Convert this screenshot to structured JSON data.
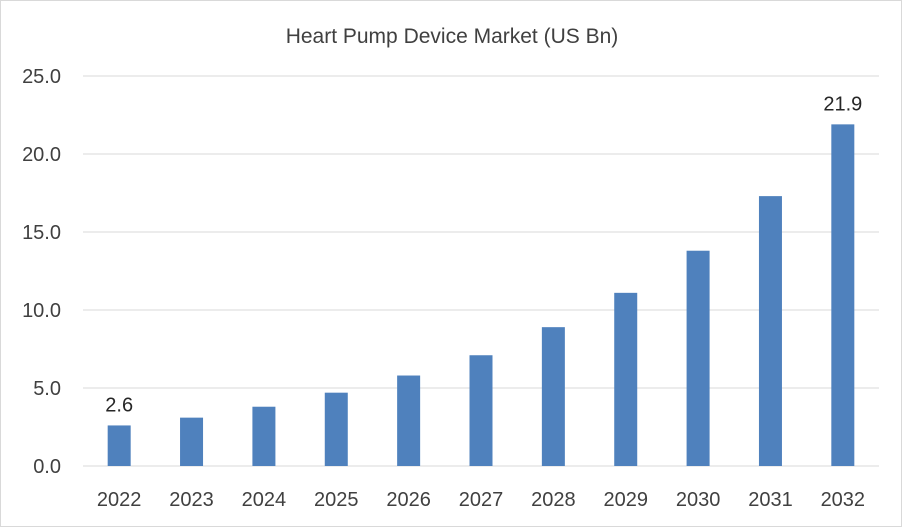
{
  "chart_data": {
    "type": "bar",
    "title": "Heart Pump Device Market (US Bn)",
    "xlabel": "",
    "ylabel": "",
    "categories": [
      "2022",
      "2023",
      "2024",
      "2025",
      "2026",
      "2027",
      "2028",
      "2029",
      "2030",
      "2031",
      "2032"
    ],
    "values": [
      2.6,
      3.1,
      3.8,
      4.7,
      5.8,
      7.1,
      8.9,
      11.1,
      13.8,
      17.3,
      21.9
    ],
    "data_labels": [
      {
        "index": 0,
        "text": "2.6"
      },
      {
        "index": 10,
        "text": "21.9"
      }
    ],
    "ylim": [
      0,
      25
    ],
    "yticks": [
      "0.0",
      "5.0",
      "10.0",
      "15.0",
      "20.0",
      "25.0"
    ],
    "ytick_values": [
      0,
      5,
      10,
      15,
      20,
      25
    ],
    "grid": true,
    "legend": "none",
    "bar_color": "#4f81bd"
  }
}
